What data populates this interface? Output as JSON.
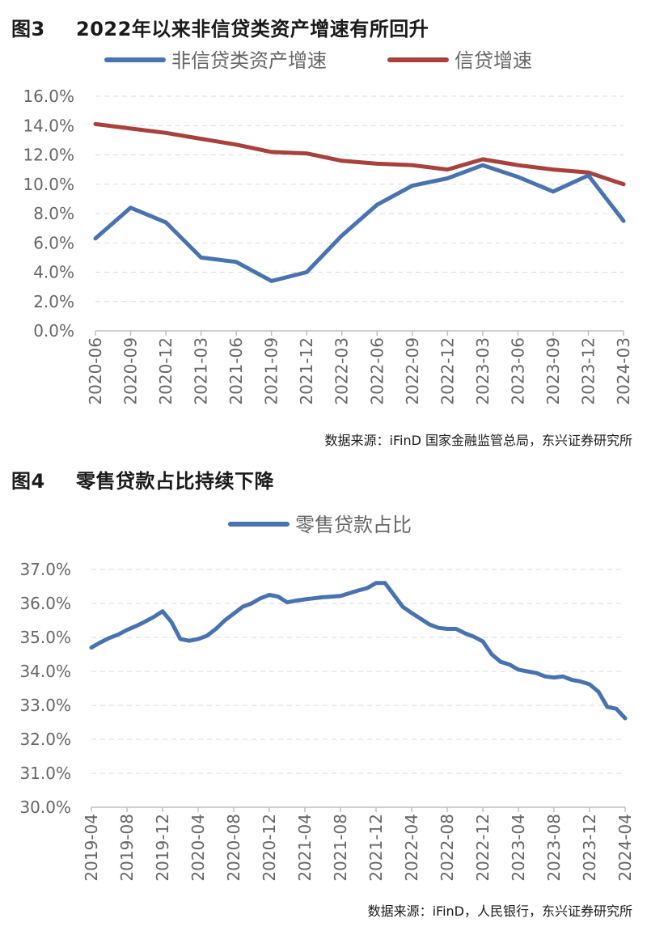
{
  "figures": [
    {
      "number": "图3",
      "title": "2022年以来非信贷类资产增速有所回升",
      "source": "数据来源：iFinD 国家金融监管总局，东兴证券研究所"
    },
    {
      "number": "图4",
      "title": "零售贷款占比持续下降",
      "source": "数据来源：iFinD，人民银行，东兴证券研究所"
    }
  ],
  "chart_data": [
    {
      "type": "line",
      "categories": [
        "2020-06",
        "2020-09",
        "2020-12",
        "2021-03",
        "2021-06",
        "2021-09",
        "2021-12",
        "2022-03",
        "2022-06",
        "2022-09",
        "2022-12",
        "2023-03",
        "2023-06",
        "2023-09",
        "2023-12",
        "2024-03"
      ],
      "series": [
        {
          "name": "非信贷类资产增速",
          "color": "#4a72b0",
          "values": [
            6.3,
            8.4,
            7.4,
            5.0,
            4.7,
            3.4,
            4.0,
            6.5,
            8.6,
            9.9,
            10.4,
            11.3,
            10.5,
            9.5,
            10.6,
            7.5
          ]
        },
        {
          "name": "信贷增速",
          "color": "#a8413d",
          "values": [
            14.1,
            13.8,
            13.5,
            13.1,
            12.7,
            12.2,
            12.1,
            11.6,
            11.4,
            11.3,
            11.0,
            11.7,
            11.3,
            11.0,
            10.8,
            10.0
          ]
        }
      ],
      "yticks": [
        "0.0%",
        "2.0%",
        "4.0%",
        "6.0%",
        "8.0%",
        "10.0%",
        "12.0%",
        "14.0%",
        "16.0%"
      ],
      "ylim": [
        0,
        16
      ],
      "grid": true,
      "legend_position": "top"
    },
    {
      "type": "line",
      "x_tick_labels": [
        "2019-04",
        "2019-08",
        "2019-12",
        "2020-04",
        "2020-08",
        "2020-12",
        "2021-04",
        "2021-08",
        "2021-12",
        "2022-04",
        "2022-08",
        "2022-12",
        "2023-04",
        "2023-08",
        "2023-12",
        "2024-04"
      ],
      "x_start": "2019-04",
      "x_end": "2024-04",
      "series": [
        {
          "name": "零售贷款占比",
          "color": "#4a72b0",
          "dates": [
            "2019-04",
            "2019-05",
            "2019-06",
            "2019-07",
            "2019-08",
            "2019-09",
            "2019-10",
            "2019-11",
            "2019-12",
            "2020-01",
            "2020-02",
            "2020-03",
            "2020-04",
            "2020-05",
            "2020-06",
            "2020-07",
            "2020-08",
            "2020-09",
            "2020-10",
            "2020-11",
            "2020-12",
            "2021-01",
            "2021-02",
            "2021-03",
            "2021-04",
            "2021-05",
            "2021-06",
            "2021-07",
            "2021-08",
            "2021-09",
            "2021-10",
            "2021-11",
            "2021-12",
            "2022-01",
            "2022-02",
            "2022-03",
            "2022-04",
            "2022-05",
            "2022-06",
            "2022-07",
            "2022-08",
            "2022-09",
            "2022-10",
            "2022-11",
            "2022-12",
            "2023-01",
            "2023-02",
            "2023-03",
            "2023-04",
            "2023-05",
            "2023-06",
            "2023-07",
            "2023-08",
            "2023-09",
            "2023-10",
            "2023-11",
            "2023-12",
            "2024-01",
            "2024-02",
            "2024-03",
            "2024-04"
          ],
          "values": [
            34.7,
            34.85,
            34.98,
            35.08,
            35.22,
            35.33,
            35.46,
            35.6,
            35.77,
            35.45,
            34.95,
            34.9,
            34.95,
            35.05,
            35.25,
            35.5,
            35.7,
            35.9,
            36.0,
            36.15,
            36.25,
            36.2,
            36.03,
            36.08,
            36.12,
            36.15,
            36.18,
            36.2,
            36.22,
            36.3,
            36.38,
            36.45,
            36.6,
            36.6,
            36.25,
            35.9,
            35.72,
            35.55,
            35.38,
            35.28,
            35.25,
            35.25,
            35.12,
            35.02,
            34.88,
            34.5,
            34.28,
            34.2,
            34.05,
            34.0,
            33.95,
            33.85,
            33.82,
            33.85,
            33.75,
            33.7,
            33.62,
            33.4,
            32.95,
            32.9,
            32.62
          ]
        }
      ],
      "yticks": [
        "30.0%",
        "31.0%",
        "32.0%",
        "33.0%",
        "34.0%",
        "35.0%",
        "36.0%",
        "37.0%"
      ],
      "ylim": [
        30,
        37
      ],
      "grid": true,
      "legend_position": "top"
    }
  ]
}
